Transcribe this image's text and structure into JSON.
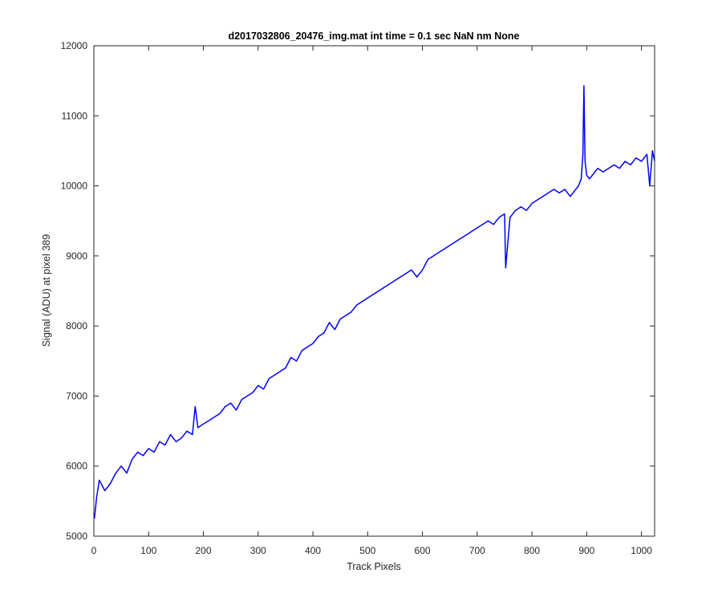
{
  "chart_data": {
    "type": "line",
    "title": "d2017032806_20476_img.mat int time = 0.1 sec  NaN nm None",
    "xlabel": "Track Pixels",
    "ylabel": "Signal (ADU) at pixel 389",
    "xlim": [
      0,
      1024
    ],
    "ylim": [
      5000,
      12000
    ],
    "xticks": [
      0,
      100,
      200,
      300,
      400,
      500,
      600,
      700,
      800,
      900,
      1000
    ],
    "yticks": [
      5000,
      6000,
      7000,
      8000,
      9000,
      10000,
      11000,
      12000
    ],
    "grid": false,
    "legend": "none",
    "series": [
      {
        "color": "#0000ff",
        "x": [
          1,
          5,
          10,
          20,
          30,
          40,
          50,
          60,
          70,
          80,
          90,
          100,
          110,
          120,
          130,
          140,
          150,
          160,
          170,
          180,
          185,
          190,
          200,
          210,
          220,
          230,
          240,
          250,
          260,
          270,
          280,
          290,
          300,
          310,
          320,
          330,
          340,
          350,
          360,
          370,
          380,
          390,
          400,
          410,
          420,
          430,
          440,
          450,
          460,
          470,
          480,
          490,
          500,
          510,
          520,
          530,
          540,
          550,
          560,
          570,
          580,
          590,
          600,
          610,
          620,
          630,
          640,
          650,
          660,
          670,
          680,
          690,
          700,
          710,
          720,
          730,
          740,
          750,
          752,
          760,
          770,
          780,
          790,
          800,
          810,
          820,
          830,
          840,
          850,
          860,
          870,
          880,
          885,
          890,
          893,
          895,
          897,
          900,
          905,
          910,
          920,
          930,
          940,
          950,
          960,
          970,
          980,
          990,
          1000,
          1010,
          1015,
          1020,
          1024
        ],
        "y": [
          5250,
          5550,
          5800,
          5650,
          5750,
          5900,
          6000,
          5900,
          6100,
          6200,
          6150,
          6250,
          6200,
          6350,
          6300,
          6450,
          6350,
          6400,
          6500,
          6450,
          6850,
          6550,
          6600,
          6650,
          6700,
          6750,
          6850,
          6900,
          6800,
          6950,
          7000,
          7050,
          7150,
          7100,
          7250,
          7300,
          7350,
          7400,
          7550,
          7500,
          7650,
          7700,
          7750,
          7850,
          7900,
          8050,
          7950,
          8100,
          8150,
          8200,
          8300,
          8350,
          8400,
          8450,
          8500,
          8550,
          8600,
          8650,
          8700,
          8750,
          8800,
          8700,
          8800,
          8950,
          9000,
          9050,
          9100,
          9150,
          9200,
          9250,
          9300,
          9350,
          9400,
          9450,
          9500,
          9450,
          9550,
          9600,
          8830,
          9550,
          9650,
          9700,
          9650,
          9750,
          9800,
          9850,
          9900,
          9950,
          9900,
          9950,
          9850,
          9950,
          10000,
          10100,
          10450,
          11430,
          10350,
          10150,
          10100,
          10150,
          10250,
          10200,
          10250,
          10300,
          10250,
          10350,
          10300,
          10400,
          10350,
          10450,
          10000,
          10500,
          10350
        ]
      }
    ]
  }
}
